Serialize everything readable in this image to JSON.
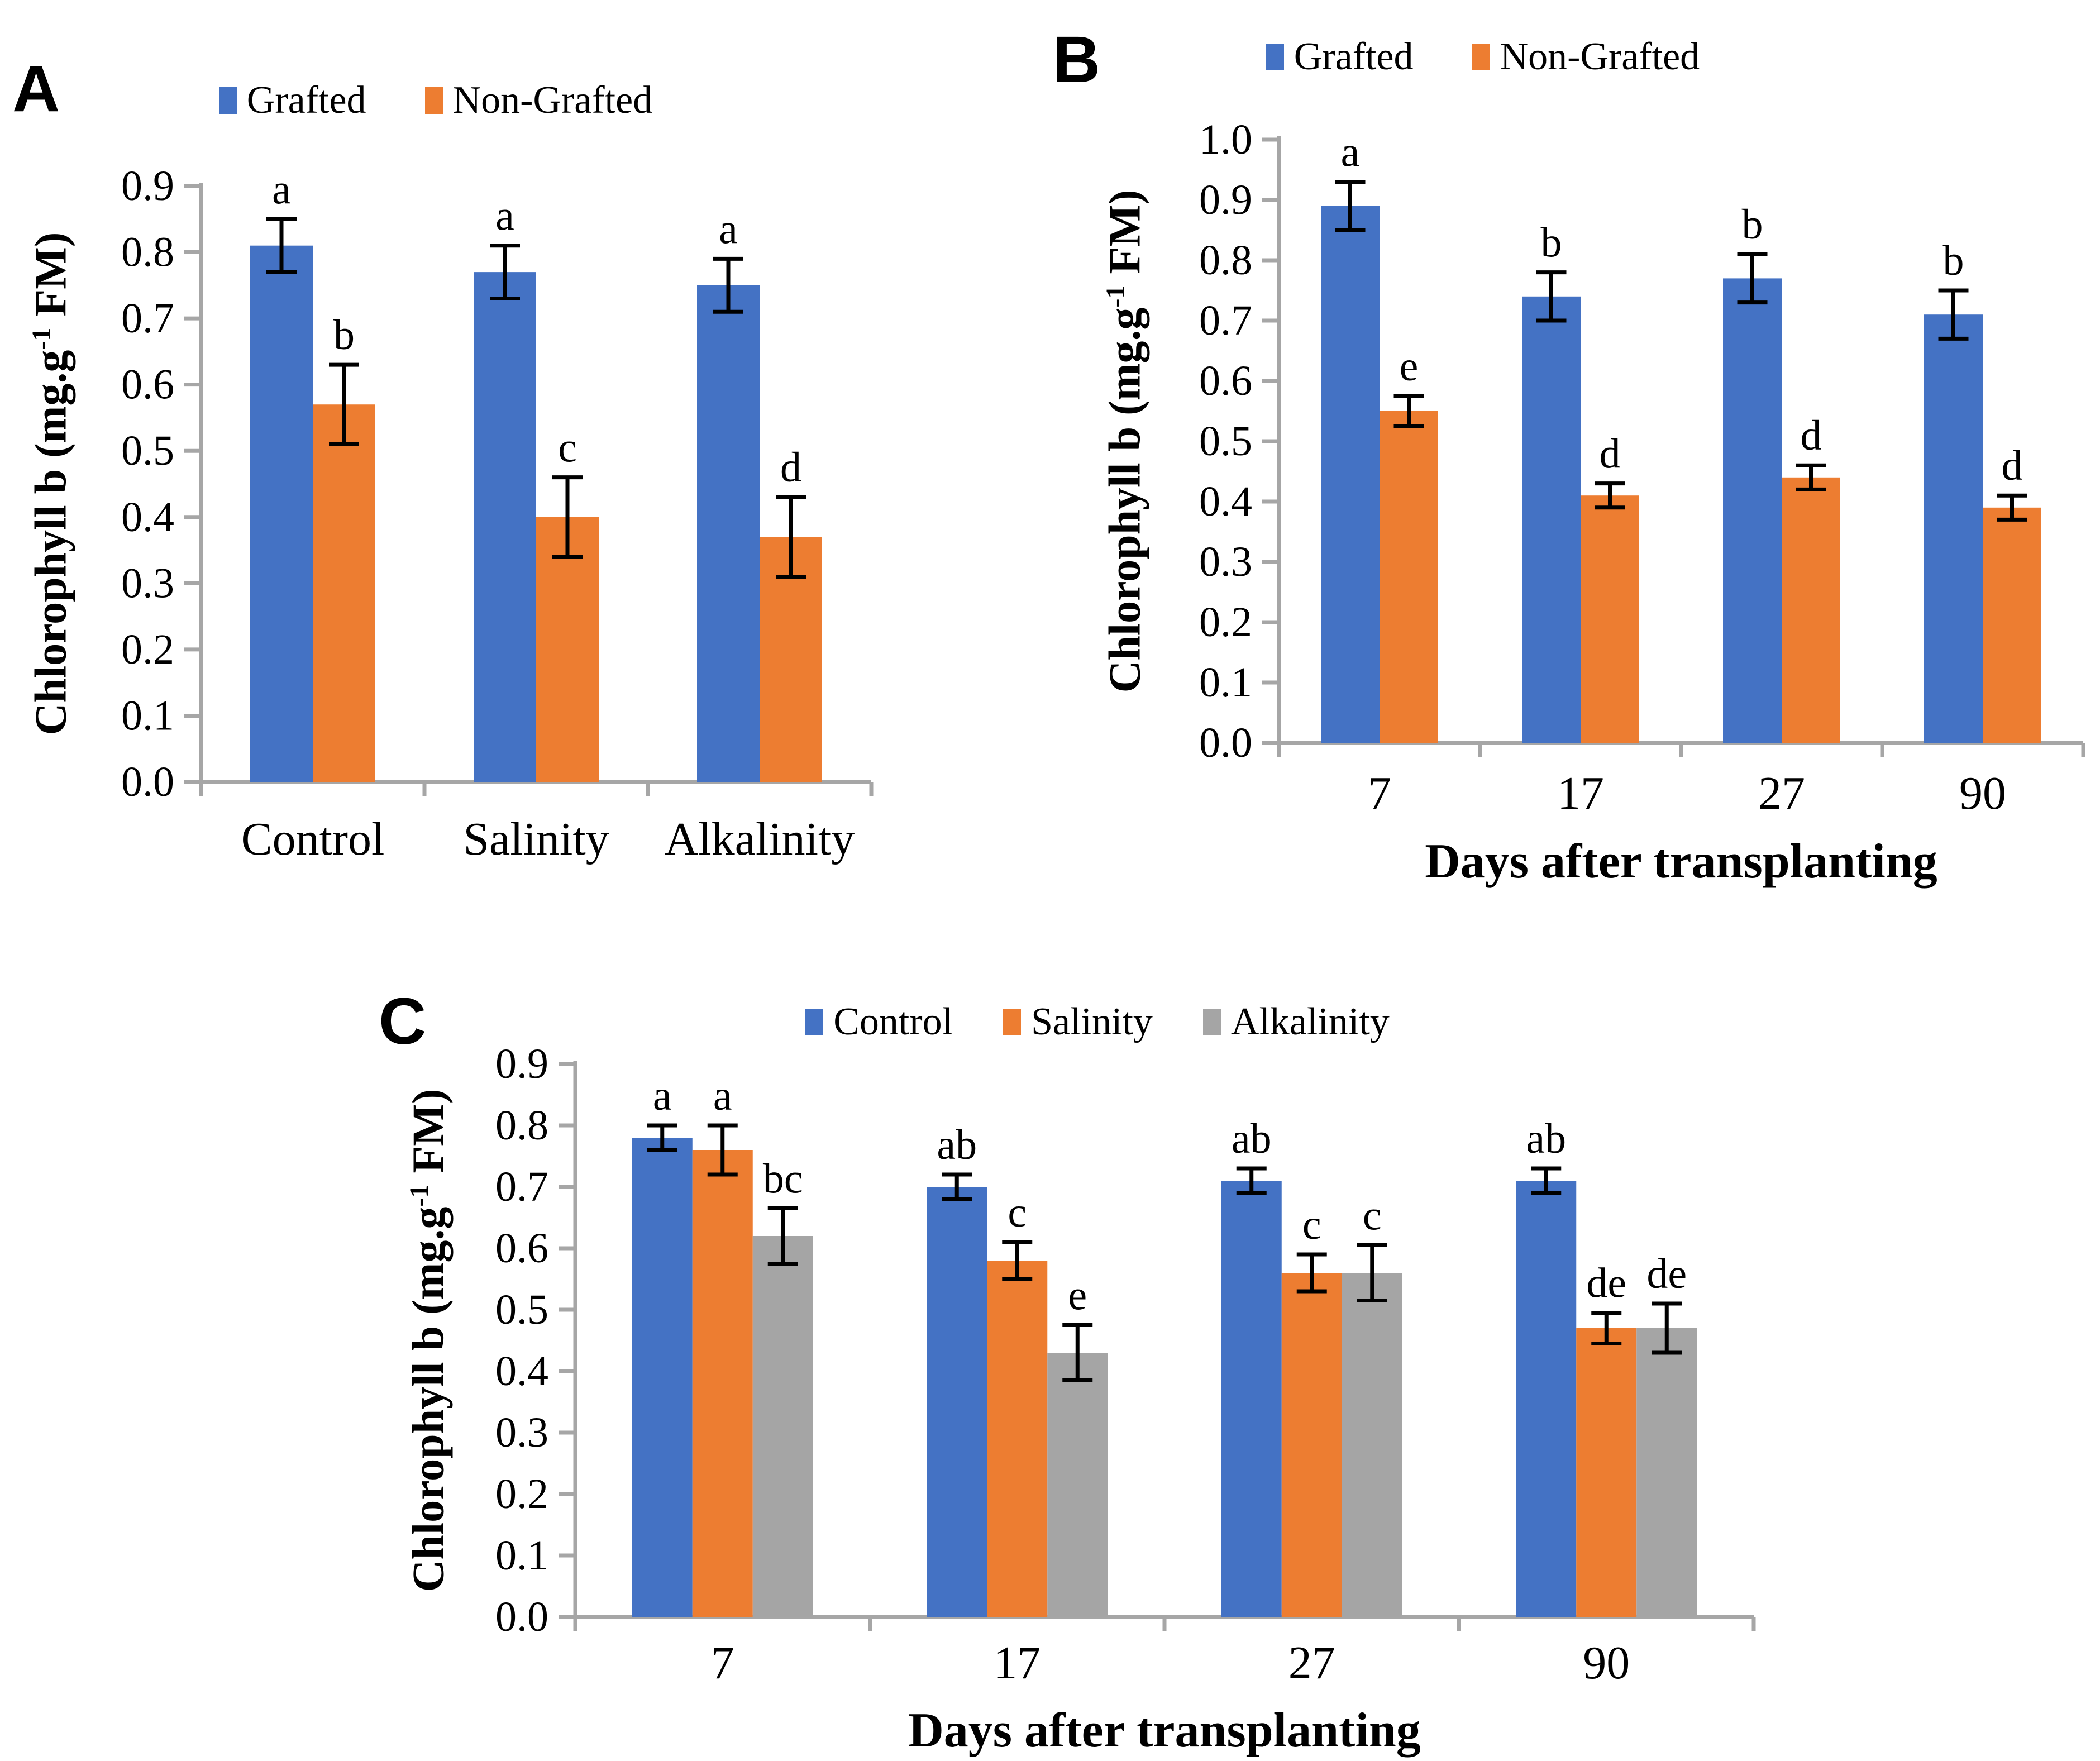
{
  "style": {
    "axis_color": "#A6A6A6",
    "error_bar_color": "#000000",
    "blue": "#4472C4",
    "orange": "#ED7D31",
    "gray": "#A5A5A5"
  },
  "chart_data": [
    {
      "panel": "A",
      "type": "bar",
      "title": "",
      "ylabel": {
        "main": "Chlorophyll b (mg.g",
        "sup": "-1",
        "end": " FM)"
      },
      "xlabel": "",
      "ylim": [
        0.0,
        0.9
      ],
      "ystep": 0.1,
      "grid": "off",
      "legend_position": "top",
      "categories": [
        "Control",
        "Salinity",
        "Alkalinity"
      ],
      "series": [
        {
          "name": "Grafted",
          "color": "#4472C4",
          "values": [
            0.81,
            0.77,
            0.75
          ],
          "errors": [
            0.04,
            0.04,
            0.04
          ],
          "sig_letters": [
            "a",
            "a",
            "a"
          ]
        },
        {
          "name": "Non-Grafted",
          "color": "#ED7D31",
          "values": [
            0.57,
            0.4,
            0.37
          ],
          "errors": [
            0.06,
            0.06,
            0.06
          ],
          "sig_letters": [
            "b",
            "c",
            "d"
          ]
        }
      ]
    },
    {
      "panel": "B",
      "type": "bar",
      "title": "",
      "ylabel": {
        "main": "Chlorophyll b (mg.g",
        "sup": "-1",
        "end": " FM)"
      },
      "xlabel": "Days after transplanting",
      "ylim": [
        0.0,
        1.0
      ],
      "ystep": 0.1,
      "grid": "off",
      "legend_position": "top",
      "categories": [
        "7",
        "17",
        "27",
        "90"
      ],
      "series": [
        {
          "name": "Grafted",
          "color": "#4472C4",
          "values": [
            0.89,
            0.74,
            0.77,
            0.71
          ],
          "errors": [
            0.04,
            0.04,
            0.04,
            0.04
          ],
          "sig_letters": [
            "a",
            "b",
            "b",
            "b"
          ]
        },
        {
          "name": "Non-Grafted",
          "color": "#ED7D31",
          "values": [
            0.55,
            0.41,
            0.44,
            0.39
          ],
          "errors": [
            0.025,
            0.02,
            0.02,
            0.02
          ],
          "sig_letters": [
            "e",
            "d",
            "d",
            "d"
          ]
        }
      ]
    },
    {
      "panel": "C",
      "type": "bar",
      "title": "",
      "ylabel": {
        "main": "Chlorophyll b (mg.g",
        "sup": "-1",
        "end": " FM)"
      },
      "xlabel": "Days after transplanting",
      "ylim": [
        0.0,
        0.9
      ],
      "ystep": 0.1,
      "grid": "off",
      "legend_position": "top",
      "categories": [
        "7",
        "17",
        "27",
        "90"
      ],
      "series": [
        {
          "name": "Control",
          "color": "#4472C4",
          "values": [
            0.78,
            0.7,
            0.71,
            0.71
          ],
          "errors": [
            0.02,
            0.02,
            0.02,
            0.02
          ],
          "sig_letters": [
            "a",
            "ab",
            "ab",
            "ab"
          ]
        },
        {
          "name": "Salinity",
          "color": "#ED7D31",
          "values": [
            0.76,
            0.58,
            0.56,
            0.47
          ],
          "errors": [
            0.04,
            0.03,
            0.03,
            0.025
          ],
          "sig_letters": [
            "a",
            "c",
            "c",
            "de"
          ]
        },
        {
          "name": "Alkalinity",
          "color": "#A5A5A5",
          "values": [
            0.62,
            0.43,
            0.56,
            0.47
          ],
          "errors": [
            0.045,
            0.045,
            0.045,
            0.04
          ],
          "sig_letters": [
            "bc",
            "e",
            "c",
            "de"
          ]
        }
      ]
    }
  ]
}
